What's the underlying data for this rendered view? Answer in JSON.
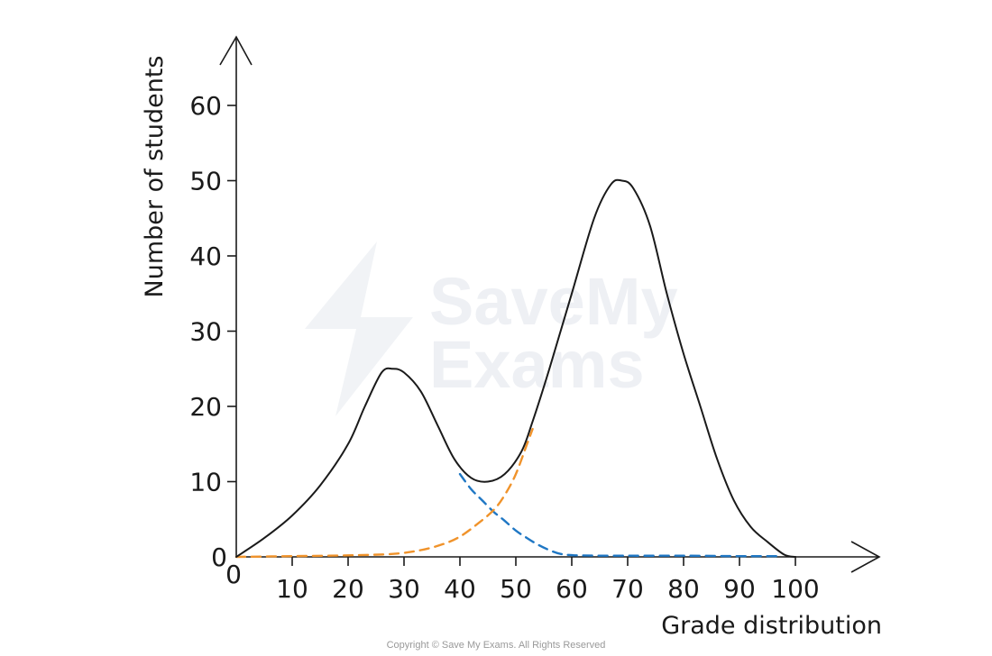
{
  "chart_data": {
    "type": "line",
    "xlabel": "Grade distribution",
    "ylabel": "Number of students",
    "xlim": [
      0,
      110
    ],
    "ylim": [
      0,
      70
    ],
    "x_ticks": [
      10,
      20,
      30,
      40,
      50,
      60,
      70,
      80,
      90,
      100
    ],
    "y_ticks": [
      10,
      20,
      30,
      40,
      50,
      60
    ],
    "x_origin_label": "0",
    "y_origin_label": "0",
    "grid": false,
    "series": [
      {
        "style": "solid",
        "color": "#1a1a1a",
        "points": [
          [
            0,
            0
          ],
          [
            5,
            2.5
          ],
          [
            10,
            5.5
          ],
          [
            15,
            9.5
          ],
          [
            20,
            15
          ],
          [
            23,
            20
          ],
          [
            26,
            24.5
          ],
          [
            28,
            25
          ],
          [
            30,
            24.5
          ],
          [
            33,
            22
          ],
          [
            36,
            17.5
          ],
          [
            39,
            13
          ],
          [
            42,
            10.5
          ],
          [
            45,
            10
          ],
          [
            48,
            11
          ],
          [
            51,
            14
          ],
          [
            53,
            18
          ],
          [
            56,
            25
          ],
          [
            60,
            35
          ],
          [
            64,
            45
          ],
          [
            67,
            49.5
          ],
          [
            69,
            50
          ],
          [
            71,
            49
          ],
          [
            74,
            44
          ],
          [
            77,
            35
          ],
          [
            80,
            27
          ],
          [
            83,
            20
          ],
          [
            86,
            13
          ],
          [
            89,
            7.5
          ],
          [
            92,
            4
          ],
          [
            95,
            2
          ],
          [
            98,
            0.3
          ],
          [
            100,
            0
          ]
        ]
      },
      {
        "style": "dashed",
        "color": "#1f77c4",
        "points": [
          [
            40,
            11
          ],
          [
            42,
            9
          ],
          [
            44,
            7.5
          ],
          [
            46,
            6
          ],
          [
            48,
            4.8
          ],
          [
            50,
            3.5
          ],
          [
            52,
            2.5
          ],
          [
            54,
            1.6
          ],
          [
            56,
            0.9
          ],
          [
            58,
            0.4
          ],
          [
            61,
            0.2
          ],
          [
            70,
            0.15
          ],
          [
            80,
            0.15
          ],
          [
            90,
            0.1
          ],
          [
            97,
            0.1
          ]
        ]
      },
      {
        "style": "dashed",
        "color": "#f0932b",
        "points": [
          [
            0,
            0
          ],
          [
            10,
            0.1
          ],
          [
            20,
            0.2
          ],
          [
            28,
            0.4
          ],
          [
            33,
            0.9
          ],
          [
            37,
            1.7
          ],
          [
            40,
            2.7
          ],
          [
            43,
            4.3
          ],
          [
            46,
            6.2
          ],
          [
            48,
            8.2
          ],
          [
            50,
            11
          ],
          [
            52,
            15
          ],
          [
            53,
            17
          ]
        ]
      }
    ]
  },
  "watermark": {
    "line1": "SaveMy",
    "line2": "Exams"
  },
  "copyright": "Copyright © Save My Exams. All Rights Reserved",
  "colors": {
    "axis": "#1a1a1a",
    "blue_dashed": "#1f77c4",
    "orange_dashed": "#f0932b",
    "watermark": "#eef0f4"
  }
}
